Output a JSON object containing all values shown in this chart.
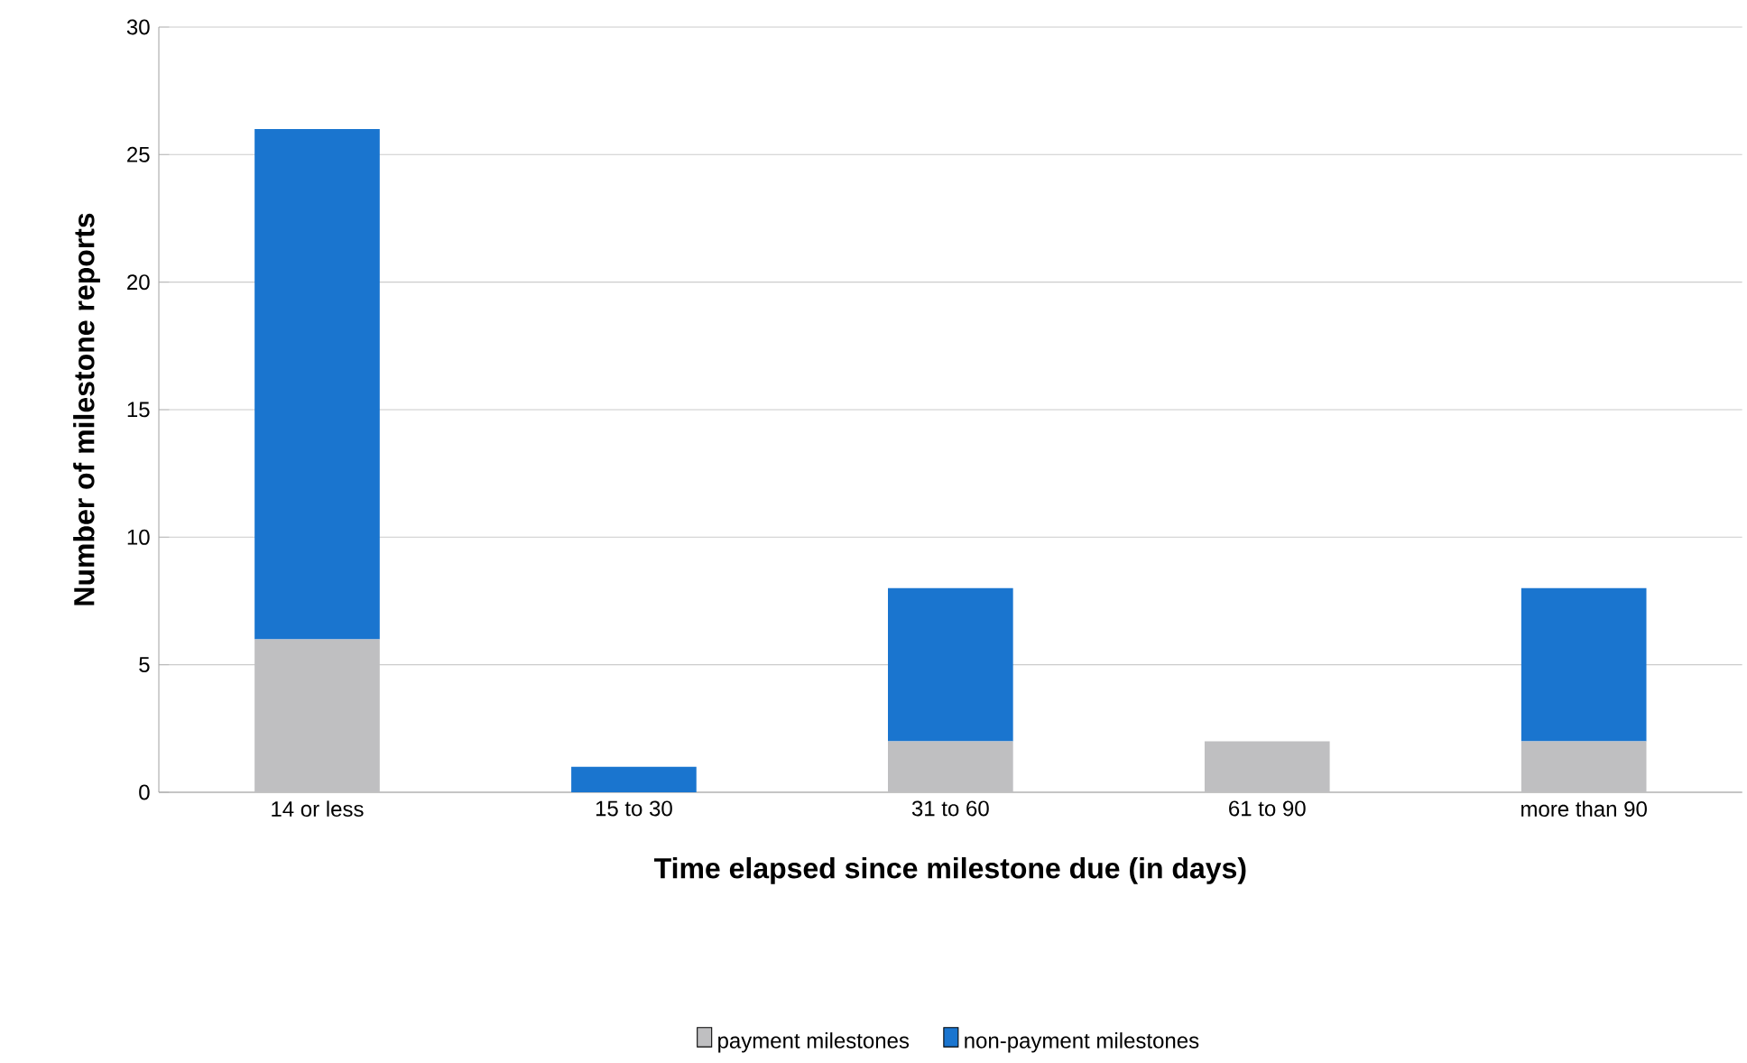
{
  "chart_data": {
    "type": "bar",
    "stacked": true,
    "xlabel": "Time elapsed since milestone due (in days)",
    "ylabel": "Number of milestone reports",
    "categories": [
      "14 or less",
      "15 to 30",
      "31 to 60",
      "61 to 90",
      "more than 90"
    ],
    "series": [
      {
        "name": "payment milestones",
        "color": "#bfbfc1",
        "values": [
          6,
          0,
          2,
          2,
          2
        ]
      },
      {
        "name": "non-payment milestones",
        "color": "#1a75cf",
        "values": [
          20,
          1,
          6,
          0,
          6
        ]
      }
    ],
    "ylim": [
      0,
      30
    ],
    "yticks": [
      0,
      5,
      10,
      15,
      20,
      25,
      30
    ],
    "grid": "y",
    "legend": "bottom"
  }
}
